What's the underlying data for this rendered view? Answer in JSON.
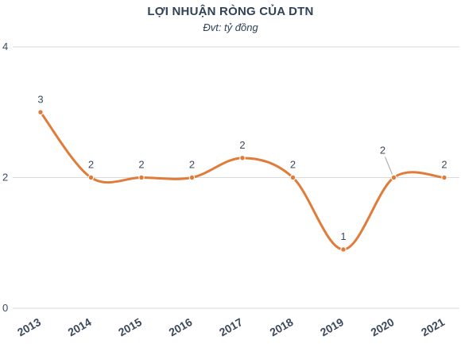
{
  "chart_data": {
    "type": "line",
    "title": "LỢI NHUẬN RÒNG CỦA DTN",
    "subtitle": "Đvt: tỷ đồng",
    "xlabel": "",
    "ylabel": "",
    "x": [
      "2013",
      "2014",
      "2015",
      "2016",
      "2017",
      "2018",
      "2019",
      "2020",
      "2021"
    ],
    "series": [
      {
        "values": [
          3,
          2,
          2,
          2,
          2.3,
          2,
          0.9,
          2,
          2
        ],
        "data_labels": [
          "3",
          "2",
          "2",
          "2",
          "2",
          "2",
          "1",
          "2",
          "2"
        ],
        "color": "#e07b39"
      }
    ],
    "yticks": [
      "0",
      "2",
      "4"
    ],
    "ylim": [
      0,
      4
    ],
    "grid": true,
    "legend": "none",
    "gridline_color": "#d9d9d9"
  }
}
